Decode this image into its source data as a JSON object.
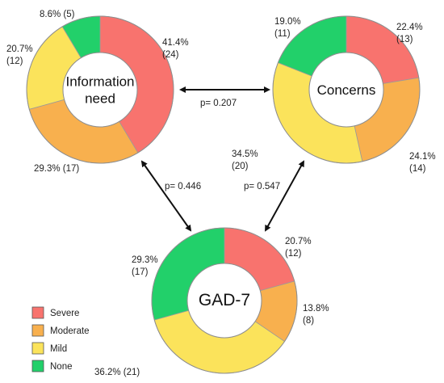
{
  "chart_data": [
    {
      "type": "pie",
      "title": "Information need",
      "title_lines": [
        "Information",
        "need"
      ],
      "segments": [
        {
          "name": "Severe",
          "percent": 41.4,
          "count": 24,
          "label_lines": [
            "41.4%",
            "(24)"
          ]
        },
        {
          "name": "Moderate",
          "percent": 29.3,
          "count": 17,
          "label_lines": [
            "29.3% (17)"
          ]
        },
        {
          "name": "Mild",
          "percent": 20.7,
          "count": 12,
          "label_lines": [
            "20.7%",
            "(12)"
          ]
        },
        {
          "name": "None",
          "percent": 8.6,
          "count": 5,
          "label_lines": [
            "8.6% (5)"
          ]
        }
      ]
    },
    {
      "type": "pie",
      "title": "Concerns",
      "title_lines": [
        "Concerns"
      ],
      "segments": [
        {
          "name": "Severe",
          "percent": 22.4,
          "count": 13,
          "label_lines": [
            "22.4%",
            "(13)"
          ]
        },
        {
          "name": "Moderate",
          "percent": 24.1,
          "count": 14,
          "label_lines": [
            "24.1%",
            "(14)"
          ]
        },
        {
          "name": "Mild",
          "percent": 34.5,
          "count": 20,
          "label_lines": [
            "34.5%",
            "(20)"
          ]
        },
        {
          "name": "None",
          "percent": 19.0,
          "count": 11,
          "label_lines": [
            "19.0%",
            "(11)"
          ]
        }
      ]
    },
    {
      "type": "pie",
      "title": "GAD-7",
      "title_lines": [
        "GAD-7"
      ],
      "segments": [
        {
          "name": "Severe",
          "percent": 20.7,
          "count": 12,
          "label_lines": [
            "20.7%",
            "(12)"
          ]
        },
        {
          "name": "Moderate",
          "percent": 13.8,
          "count": 8,
          "label_lines": [
            "13.8%",
            "(8)"
          ]
        },
        {
          "name": "Mild",
          "percent": 36.2,
          "count": 21,
          "label_lines": [
            "36.2% (21)"
          ]
        },
        {
          "name": "None",
          "percent": 29.3,
          "count": 17,
          "label_lines": [
            "29.3%",
            "(17)"
          ]
        }
      ]
    }
  ],
  "comparisons": [
    {
      "from": "Information need",
      "to": "Concerns",
      "label": "p= 0.207"
    },
    {
      "from": "Information need",
      "to": "GAD-7",
      "label": "p= 0.446"
    },
    {
      "from": "Concerns",
      "to": "GAD-7",
      "label": "p= 0.547"
    }
  ],
  "legend": {
    "placement": "bottom-left",
    "items": [
      {
        "name": "Severe",
        "color": "#F8736E"
      },
      {
        "name": "Moderate",
        "color": "#F8B04E"
      },
      {
        "name": "Mild",
        "color": "#FBE35B"
      },
      {
        "name": "None",
        "color": "#22D06A"
      }
    ]
  },
  "colors": {
    "Severe": "#F8736E",
    "Moderate": "#F8B04E",
    "Mild": "#FBE35B",
    "None": "#22D06A"
  }
}
